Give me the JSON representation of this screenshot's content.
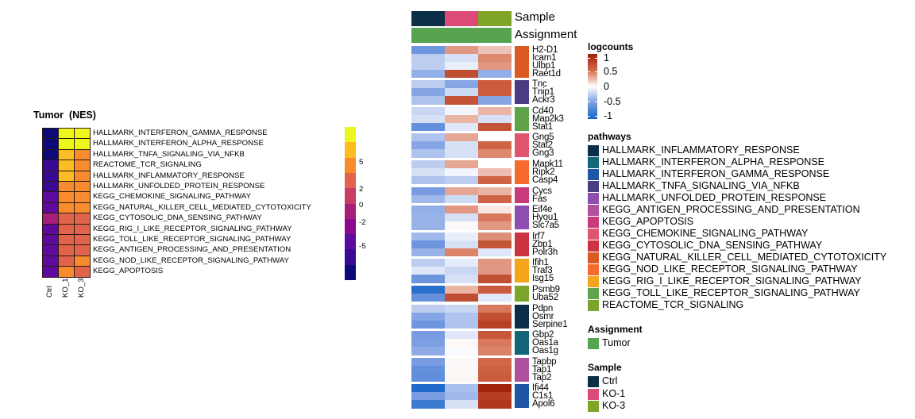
{
  "chart_data": [
    {
      "type": "heatmap",
      "title": "Tumor  (NES)",
      "columns": [
        "Ctrl",
        "KO_1",
        "KO_3"
      ],
      "rows": [
        "HALLMARK_INTERFERON_GAMMA_RESPONSE",
        "HALLMARK_INTERFERON_ALPHA_RESPONSE",
        "HALLMARK_TNFA_SIGNALING_VIA_NFKB",
        "REACTOME_TCR_SIGNALING",
        "HALLMARK_INFLAMMATORY_RESPONSE",
        "HALLMARK_UNFOLDED_PROTEIN_RESPONSE",
        "KEGG_CHEMOKINE_SIGNALING_PATHWAY",
        "KEGG_NATURAL_KILLER_CELL_MEDIATED_CYTOTOXICITY",
        "KEGG_CYTOSOLIC_DNA_SENSING_PATHWAY",
        "KEGG_RIG_I_LIKE_RECEPTOR_SIGNALING_PATHWAY",
        "KEGG_TOLL_LIKE_RECEPTOR_SIGNALING_PATHWAY",
        "KEGG_ANTIGEN_PROCESSING_AND_PRESENTATION",
        "KEGG_NOD_LIKE_RECEPTOR_SIGNALING_PATHWAY",
        "KEGG_APOPTOSIS"
      ],
      "values": [
        [
          -8,
          8,
          8
        ],
        [
          -8,
          8,
          8
        ],
        [
          -6.5,
          6,
          4.5
        ],
        [
          -5.5,
          6,
          4.5
        ],
        [
          -5.5,
          6,
          4.5
        ],
        [
          -5.5,
          4.5,
          4.5
        ],
        [
          -3.5,
          4.5,
          4.5
        ],
        [
          -3.5,
          4.5,
          4.5
        ],
        [
          -1,
          3,
          3
        ],
        [
          -3.5,
          3,
          3
        ],
        [
          -3.5,
          3,
          3
        ],
        [
          -3.5,
          3,
          3
        ],
        [
          -3.5,
          3,
          4.5
        ],
        [
          -3.5,
          4.5,
          3
        ]
      ],
      "legend": {
        "breaks": [
          -8,
          -6.5,
          -5.5,
          -3.5,
          -2,
          -1,
          1,
          3,
          4.5,
          6,
          8
        ],
        "colors": [
          "#0c0a78",
          "#3a0a94",
          "#5e0a9e",
          "#8a0a8f",
          "#a6207a",
          "#c93c63",
          "#e2634c",
          "#f78b2d",
          "#fbbd22",
          "#eef71d"
        ],
        "tick_labels": [
          "5",
          "2",
          "0",
          "-2",
          "-5"
        ],
        "tick_values": [
          5,
          2,
          0,
          -2,
          -5
        ]
      }
    },
    {
      "type": "heatmap",
      "title": "logcounts",
      "columns": [
        "Ctrl",
        "KO-1",
        "KO-3"
      ],
      "column_annotations": {
        "Sample": [
          "Ctrl",
          "KO-1",
          "KO-3"
        ],
        "Assignment": [
          "Tumor",
          "Tumor",
          "Tumor"
        ]
      },
      "groups": [
        {
          "pathway": "KEGG_NATURAL_KILLER_CELL_MEDIATED_CYTOTOXICITY",
          "genes": [
            "H2-D1",
            "Icam1",
            "Ulbp1",
            "Raet1d"
          ],
          "values": [
            [
              -0.55,
              0.35,
              0.2
            ],
            [
              -0.25,
              -0.15,
              0.4
            ],
            [
              -0.25,
              -0.08,
              0.35
            ],
            [
              -0.4,
              0.7,
              -0.4
            ]
          ]
        },
        {
          "pathway": "HALLMARK_TNFA_SIGNALING_VIA_NFKB",
          "genes": [
            "Tnc",
            "Tnip1",
            "Ackr3"
          ],
          "values": [
            [
              -0.25,
              -0.45,
              0.6
            ],
            [
              -0.45,
              -0.18,
              0.6
            ],
            [
              -0.3,
              0.65,
              -0.45
            ]
          ]
        },
        {
          "pathway": "KEGG_TOLL_LIKE_RECEPTOR_SIGNALING_PATHWAY",
          "genes": [
            "Cd40",
            "Map2k3",
            "Stat1"
          ],
          "values": [
            [
              -0.2,
              -0.05,
              0.25
            ],
            [
              -0.15,
              0.25,
              -0.15
            ],
            [
              -0.6,
              -0.12,
              0.65
            ]
          ]
        },
        {
          "pathway": "KEGG_CHEMOKINE_SIGNALING_PATHWAY",
          "genes": [
            "Gng5",
            "Stat2",
            "Gng3"
          ],
          "values": [
            [
              -0.3,
              0.3,
              0.0
            ],
            [
              -0.45,
              -0.15,
              0.55
            ],
            [
              -0.3,
              -0.15,
              0.4
            ]
          ]
        },
        {
          "pathway": "KEGG_NOD_LIKE_RECEPTOR_SIGNALING_PATHWAY",
          "genes": [
            "Mapk11",
            "Ripk2",
            "Casp4"
          ],
          "values": [
            [
              -0.25,
              0.3,
              0.0
            ],
            [
              -0.15,
              -0.05,
              0.22
            ],
            [
              -0.3,
              -0.25,
              0.55
            ]
          ]
        },
        {
          "pathway": "KEGG_APOPTOSIS",
          "genes": [
            "Cycs",
            "Fas"
          ],
          "values": [
            [
              -0.5,
              0.3,
              0.25
            ],
            [
              -0.35,
              -0.18,
              0.55
            ]
          ]
        },
        {
          "pathway": "HALLMARK_UNFOLDED_PROTEIN_RESPONSE",
          "genes": [
            "Eif4e",
            "Hyou1",
            "Slc7a5"
          ],
          "values": [
            [
              -0.4,
              0.35,
              0.08
            ],
            [
              -0.38,
              -0.15,
              0.45
            ],
            [
              -0.38,
              0.02,
              0.35
            ]
          ]
        },
        {
          "pathway": "KEGG_CYTOSOLIC_DNA_SENSING_PATHWAY",
          "genes": [
            "Irf7",
            "Zbp1",
            "Polr3h"
          ],
          "values": [
            [
              -0.35,
              -0.08,
              0.38
            ],
            [
              -0.55,
              -0.15,
              0.65
            ],
            [
              -0.38,
              0.42,
              -0.12
            ]
          ]
        },
        {
          "pathway": "KEGG_RIG_I_LIKE_RECEPTOR_SIGNALING_PATHWAY",
          "genes": [
            "Ifih1",
            "Traf3",
            "Isg15"
          ],
          "values": [
            [
              -0.25,
              -0.1,
              0.35
            ],
            [
              -0.12,
              -0.2,
              0.35
            ],
            [
              -0.55,
              -0.15,
              0.68
            ]
          ]
        },
        {
          "pathway": "REACTOME_TCR_SIGNALING",
          "genes": [
            "Psmb9",
            "Uba52"
          ],
          "values": [
            [
              -0.9,
              0.25,
              0.6
            ],
            [
              -0.6,
              0.7,
              -0.12
            ]
          ]
        },
        {
          "pathway": "HALLMARK_INFLAMMATORY_RESPONSE",
          "genes": [
            "Pdpn",
            "Osmr",
            "Serpine1"
          ],
          "values": [
            [
              -0.25,
              -0.2,
              0.45
            ],
            [
              -0.45,
              -0.3,
              0.68
            ],
            [
              -0.55,
              -0.3,
              0.78
            ]
          ]
        },
        {
          "pathway": "HALLMARK_INTERFERON_ALPHA_RESPONSE",
          "genes": [
            "Gbp2",
            "Oas1a",
            "Oas1g"
          ],
          "values": [
            [
              -0.5,
              -0.12,
              0.62
            ],
            [
              -0.48,
              0.02,
              0.45
            ],
            [
              -0.42,
              -0.02,
              0.42
            ]
          ]
        },
        {
          "pathway": "KEGG_ANTIGEN_PROCESSING_AND_PRESENTATION",
          "genes": [
            "Tapbp",
            "Tap1",
            "Tap2"
          ],
          "values": [
            [
              -0.5,
              0.02,
              0.52
            ],
            [
              -0.6,
              0.02,
              0.58
            ],
            [
              -0.62,
              0.03,
              0.6
            ]
          ]
        },
        {
          "pathway": "HALLMARK_INTERFERON_GAMMA_RESPONSE",
          "genes": [
            "Ifi44",
            "C1s1",
            "Apol6"
          ],
          "values": [
            [
              -0.95,
              -0.32,
              0.98
            ],
            [
              -0.5,
              -0.35,
              0.8
            ],
            [
              -0.8,
              -0.15,
              0.85
            ]
          ]
        }
      ],
      "legend": {
        "title": "logcounts",
        "range": [
          -1,
          1
        ],
        "tick_labels": [
          "1",
          "0.5",
          "0",
          "-0.5",
          "-1"
        ],
        "tick_values": [
          1,
          0.5,
          0,
          -0.5,
          -1
        ],
        "low_color": "#1565c8",
        "mid_color": "#ffffff",
        "high_color": "#a0210a"
      }
    }
  ],
  "annotations": {
    "sample_label": "Sample",
    "assignment_label": "Assignment"
  },
  "pathways_legend": {
    "title": "pathways",
    "items": [
      {
        "label": "HALLMARK_INFLAMMATORY_RESPONSE",
        "color": "#0b2e4a"
      },
      {
        "label": "HALLMARK_INTERFERON_ALPHA_RESPONSE",
        "color": "#136677"
      },
      {
        "label": "HALLMARK_INTERFERON_GAMMA_RESPONSE",
        "color": "#1d56a4"
      },
      {
        "label": "HALLMARK_TNFA_SIGNALING_VIA_NFKB",
        "color": "#4a3b82"
      },
      {
        "label": "HALLMARK_UNFOLDED_PROTEIN_RESPONSE",
        "color": "#8e4eb0"
      },
      {
        "label": "KEGG_ANTIGEN_PROCESSING_AND_PRESENTATION",
        "color": "#b0519d"
      },
      {
        "label": "KEGG_APOPTOSIS",
        "color": "#c93a7b"
      },
      {
        "label": "KEGG_CHEMOKINE_SIGNALING_PATHWAY",
        "color": "#e0566e"
      },
      {
        "label": "KEGG_CYTOSOLIC_DNA_SENSING_PATHWAY",
        "color": "#cc3341"
      },
      {
        "label": "KEGG_NATURAL_KILLER_CELL_MEDIATED_CYTOTOXICITY",
        "color": "#db5a22"
      },
      {
        "label": "KEGG_NOD_LIKE_RECEPTOR_SIGNALING_PATHWAY",
        "color": "#f56a2d"
      },
      {
        "label": "KEGG_RIG_I_LIKE_RECEPTOR_SIGNALING_PATHWAY",
        "color": "#f5a51c"
      },
      {
        "label": "KEGG_TOLL_LIKE_RECEPTOR_SIGNALING_PATHWAY",
        "color": "#5fa34a"
      },
      {
        "label": "REACTOME_TCR_SIGNALING",
        "color": "#7aa52a"
      }
    ]
  },
  "assignment_legend": {
    "title": "Assignment",
    "items": [
      {
        "label": "Tumor",
        "color": "#56a450"
      }
    ]
  },
  "sample_legend": {
    "title": "Sample",
    "items": [
      {
        "label": "Ctrl",
        "color": "#0c2f48"
      },
      {
        "label": "KO-1",
        "color": "#dc4b78"
      },
      {
        "label": "KO-3",
        "color": "#7fa428"
      }
    ]
  }
}
